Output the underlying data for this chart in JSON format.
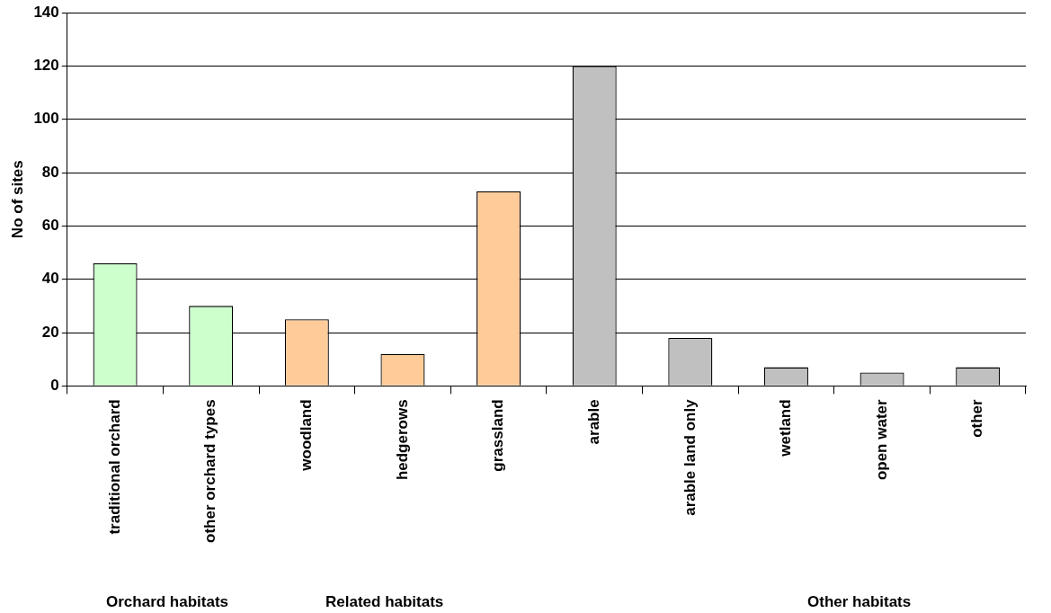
{
  "chart_data": {
    "type": "bar",
    "ylabel": "No of sites",
    "categories": [
      "traditional orchard",
      "other orchard types",
      "woodland",
      "hedgerows",
      "grassland",
      "arable",
      "arable land only",
      "wetland",
      "open water",
      "other"
    ],
    "values": [
      46,
      30,
      25,
      12,
      73,
      120,
      18,
      7,
      5,
      7
    ],
    "colors": [
      "#ccffcc",
      "#ccffcc",
      "#ffcc99",
      "#ffcc99",
      "#ffcc99",
      "#c0c0c0",
      "#c0c0c0",
      "#c0c0c0",
      "#c0c0c0",
      "#c0c0c0"
    ],
    "ylim": [
      0,
      140
    ],
    "yticks": [
      0,
      20,
      40,
      60,
      80,
      100,
      120,
      140
    ],
    "grid": "y",
    "legend": false,
    "annotations": [
      "Orchard habitats",
      "Related habitats",
      "Other habitats"
    ]
  }
}
